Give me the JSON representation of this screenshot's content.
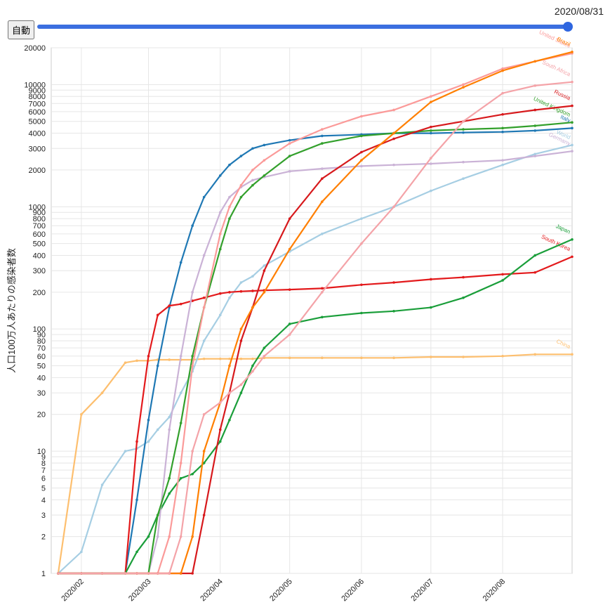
{
  "controls": {
    "button": "自動",
    "date": "2020/08/31"
  },
  "chart_data": {
    "type": "line",
    "y_label": "人口100万人あたりの感染者数",
    "log_scale": true,
    "grid": true,
    "x": [
      "2020/01/22",
      "2020/02/01",
      "2020/02/10",
      "2020/02/20",
      "2020/02/25",
      "2020/03/01",
      "2020/03/05",
      "2020/03/10",
      "2020/03/15",
      "2020/03/20",
      "2020/03/25",
      "2020/04/01",
      "2020/04/05",
      "2020/04/10",
      "2020/04/15",
      "2020/04/20",
      "2020/05/01",
      "2020/05/15",
      "2020/06/01",
      "2020/06/15",
      "2020/07/01",
      "2020/07/15",
      "2020/08/01",
      "2020/08/15",
      "2020/08/31"
    ],
    "xlim": [
      "2020/01/19",
      "2020/08/31"
    ],
    "xticks": [
      {
        "value": "2020/02/01",
        "label": "2020/02"
      },
      {
        "value": "2020/03/01",
        "label": "2020/03"
      },
      {
        "value": "2020/04/01",
        "label": "2020/04"
      },
      {
        "value": "2020/05/01",
        "label": "2020/05"
      },
      {
        "value": "2020/06/01",
        "label": "2020/06"
      },
      {
        "value": "2020/07/01",
        "label": "2020/07"
      },
      {
        "value": "2020/08/01",
        "label": "2020/08"
      }
    ],
    "ylim": [
      1,
      20000
    ],
    "yticks": [
      1,
      2,
      3,
      4,
      5,
      6,
      7,
      8,
      9,
      10,
      20,
      30,
      40,
      50,
      60,
      70,
      80,
      90,
      100,
      200,
      300,
      400,
      500,
      600,
      700,
      800,
      900,
      1000,
      2000,
      3000,
      4000,
      5000,
      6000,
      7000,
      8000,
      9000,
      10000,
      20000
    ],
    "series": [
      {
        "name": "China",
        "color": "#fdbf6f",
        "values": [
          1,
          20,
          30,
          53,
          55,
          55,
          56,
          56,
          56,
          56,
          57,
          57,
          57,
          57,
          57,
          58,
          58,
          58,
          58,
          58,
          59,
          59,
          60,
          62,
          62
        ]
      },
      {
        "name": "World",
        "color": "#a6cee3",
        "values": [
          1,
          1.5,
          5.3,
          10,
          10.5,
          12,
          15,
          19,
          30,
          45,
          80,
          130,
          180,
          240,
          270,
          330,
          430,
          600,
          800,
          1000,
          1350,
          1700,
          2200,
          2700,
          3200
        ]
      },
      {
        "name": "Italy",
        "color": "#1f78b4",
        "values": [
          1,
          1,
          1,
          1,
          4,
          18,
          50,
          150,
          350,
          700,
          1200,
          1800,
          2200,
          2600,
          3000,
          3200,
          3500,
          3800,
          3900,
          4000,
          4000,
          4050,
          4100,
          4200,
          4400
        ]
      },
      {
        "name": "South Korea",
        "color": "#e31a1c",
        "values": [
          1,
          1,
          1,
          1,
          12,
          60,
          130,
          155,
          160,
          170,
          180,
          195,
          200,
          203,
          205,
          207,
          210,
          215,
          230,
          240,
          255,
          265,
          280,
          290,
          390
        ]
      },
      {
        "name": "Japan",
        "color": "#1a9e3a",
        "values": [
          1,
          1,
          1,
          1,
          1.5,
          2,
          3,
          4.5,
          6,
          6.5,
          8,
          12,
          18,
          30,
          50,
          70,
          110,
          125,
          135,
          140,
          150,
          180,
          250,
          400,
          540
        ]
      },
      {
        "name": "Germany",
        "color": "#cab2d6",
        "values": [
          1,
          1,
          1,
          1,
          1,
          1,
          2,
          15,
          60,
          200,
          400,
          900,
          1200,
          1450,
          1650,
          1750,
          1950,
          2050,
          2150,
          2200,
          2250,
          2320,
          2400,
          2600,
          2850
        ]
      },
      {
        "name": "United Kingdom",
        "color": "#33a02c",
        "values": [
          1,
          1,
          1,
          1,
          1,
          1,
          3,
          6,
          17,
          60,
          150,
          450,
          800,
          1200,
          1500,
          1800,
          2600,
          3300,
          3800,
          4000,
          4200,
          4300,
          4400,
          4600,
          4900
        ]
      },
      {
        "name": "United States",
        "color": "#fb9a99",
        "values": [
          1,
          1,
          1,
          1,
          1,
          1,
          1,
          2,
          8,
          50,
          150,
          600,
          1000,
          1500,
          2000,
          2400,
          3300,
          4300,
          5500,
          6200,
          8000,
          10000,
          13500,
          15500,
          18000
        ]
      },
      {
        "name": "Russia",
        "color": "#d7191c",
        "values": [
          1,
          1,
          1,
          1,
          1,
          1,
          1,
          1,
          1,
          1,
          3,
          15,
          30,
          80,
          150,
          300,
          800,
          1700,
          2800,
          3600,
          4500,
          5000,
          5700,
          6200,
          6700
        ]
      },
      {
        "name": "Brazil",
        "color": "#ff7f00",
        "values": [
          1,
          1,
          1,
          1,
          1,
          1,
          1,
          1,
          1,
          2,
          10,
          25,
          50,
          100,
          150,
          200,
          450,
          1100,
          2400,
          4000,
          7200,
          9500,
          13000,
          15500,
          18500
        ]
      },
      {
        "name": "South Africa",
        "color": "#f4a3a8",
        "values": [
          1,
          1,
          1,
          1,
          1,
          1,
          1,
          1,
          2,
          10,
          20,
          25,
          30,
          35,
          45,
          60,
          90,
          200,
          500,
          1000,
          2500,
          5000,
          8500,
          9800,
          10500
        ]
      }
    ]
  }
}
